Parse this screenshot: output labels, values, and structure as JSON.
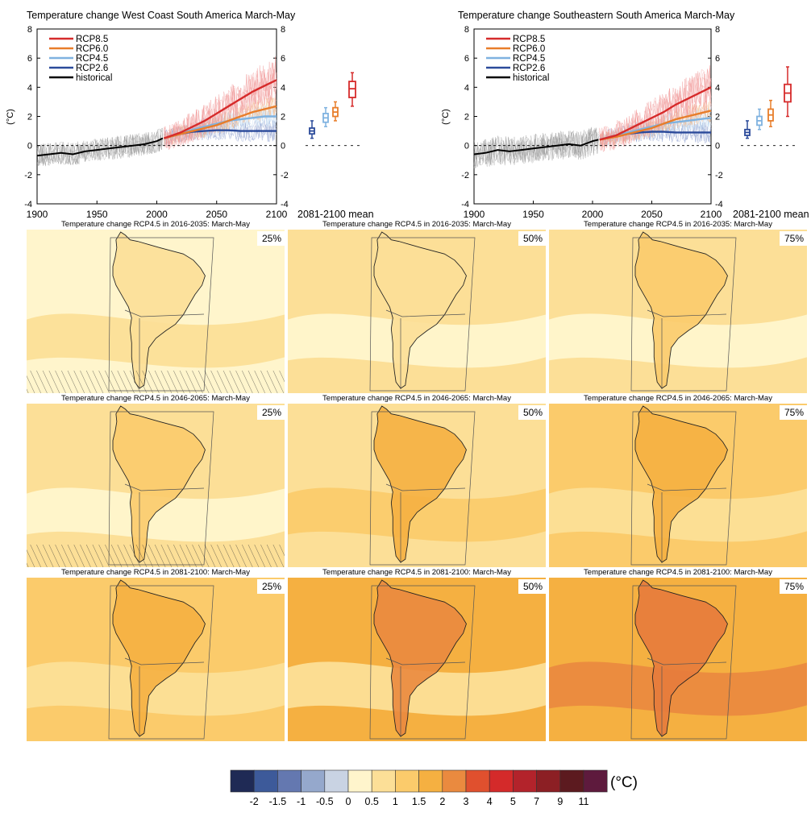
{
  "chart_data": {
    "type": "figure",
    "timeseries": [
      {
        "type": "line",
        "title": "Temperature change West Coast South America March-May",
        "ylabel": "(°C)",
        "xticks": [
          1900,
          1950,
          2000,
          2050,
          2100
        ],
        "yticks": [
          -4,
          -2,
          0,
          2,
          4,
          6,
          8
        ],
        "xlim": [
          1900,
          2100
        ],
        "ylim": [
          -4,
          8
        ],
        "box_label": "2081-2100 mean",
        "legend": [
          "RCP8.5",
          "RCP6.0",
          "RCP4.5",
          "RCP2.6",
          "historical"
        ],
        "colors": {
          "RCP8.5": "#d62b2b",
          "RCP6.0": "#e87d2a",
          "RCP4.5": "#7fb2e0",
          "RCP2.6": "#2b4a9a",
          "historical": "#000000"
        },
        "historical": {
          "x": [
            1900,
            1910,
            1920,
            1930,
            1940,
            1950,
            1960,
            1970,
            1980,
            1990,
            2000,
            2005
          ],
          "y": [
            -0.7,
            -0.6,
            -0.5,
            -0.6,
            -0.4,
            -0.3,
            -0.2,
            -0.1,
            0.0,
            0.1,
            0.3,
            0.5
          ]
        },
        "series": [
          {
            "name": "RCP8.5",
            "x": [
              2006,
              2020,
              2030,
              2040,
              2050,
              2060,
              2070,
              2080,
              2090,
              2100
            ],
            "y": [
              0.5,
              0.9,
              1.3,
              1.7,
              2.2,
              2.7,
              3.2,
              3.7,
              4.1,
              4.5
            ]
          },
          {
            "name": "RCP6.0",
            "x": [
              2006,
              2020,
              2030,
              2040,
              2050,
              2060,
              2070,
              2080,
              2090,
              2100
            ],
            "y": [
              0.5,
              0.8,
              1.0,
              1.2,
              1.4,
              1.7,
              2.0,
              2.3,
              2.5,
              2.7
            ]
          },
          {
            "name": "RCP4.5",
            "x": [
              2006,
              2020,
              2030,
              2040,
              2050,
              2060,
              2070,
              2080,
              2090,
              2100
            ],
            "y": [
              0.5,
              0.8,
              1.1,
              1.3,
              1.5,
              1.7,
              1.8,
              1.9,
              2.0,
              2.0
            ]
          },
          {
            "name": "RCP2.6",
            "x": [
              2006,
              2020,
              2030,
              2040,
              2050,
              2060,
              2070,
              2080,
              2090,
              2100
            ],
            "y": [
              0.5,
              0.8,
              0.95,
              1.0,
              1.05,
              1.05,
              1.0,
              1.0,
              1.0,
              1.0
            ]
          }
        ],
        "boxes": [
          {
            "name": "RCP2.6",
            "min": 0.5,
            "q1": 0.8,
            "median": 1.0,
            "q3": 1.2,
            "max": 1.7
          },
          {
            "name": "RCP4.5",
            "min": 1.3,
            "q1": 1.6,
            "median": 1.9,
            "q3": 2.2,
            "max": 2.6
          },
          {
            "name": "RCP6.0",
            "min": 1.7,
            "q1": 2.0,
            "median": 2.3,
            "q3": 2.6,
            "max": 3.0
          },
          {
            "name": "RCP8.5",
            "min": 2.7,
            "q1": 3.3,
            "median": 3.9,
            "q3": 4.4,
            "max": 5.0
          }
        ]
      },
      {
        "type": "line",
        "title": "Temperature change Southeastern South America March-May",
        "ylabel": "(°C)",
        "xticks": [
          1900,
          1950,
          2000,
          2050,
          2100
        ],
        "yticks": [
          -4,
          -2,
          0,
          2,
          4,
          6,
          8
        ],
        "xlim": [
          1900,
          2100
        ],
        "ylim": [
          -4,
          8
        ],
        "box_label": "2081-2100 mean",
        "legend": [
          "RCP8.5",
          "RCP6.0",
          "RCP4.5",
          "RCP2.6",
          "historical"
        ],
        "colors": {
          "RCP8.5": "#d62b2b",
          "RCP6.0": "#e87d2a",
          "RCP4.5": "#7fb2e0",
          "RCP2.6": "#2b4a9a",
          "historical": "#000000"
        },
        "historical": {
          "x": [
            1900,
            1910,
            1920,
            1930,
            1940,
            1950,
            1960,
            1970,
            1980,
            1990,
            2000,
            2005
          ],
          "y": [
            -0.6,
            -0.5,
            -0.3,
            -0.4,
            -0.3,
            -0.2,
            -0.1,
            0.0,
            0.1,
            0.0,
            0.3,
            0.4
          ]
        },
        "series": [
          {
            "name": "RCP8.5",
            "x": [
              2006,
              2020,
              2030,
              2040,
              2050,
              2060,
              2070,
              2080,
              2090,
              2100
            ],
            "y": [
              0.4,
              0.7,
              1.1,
              1.5,
              1.9,
              2.3,
              2.8,
              3.2,
              3.6,
              4.0
            ]
          },
          {
            "name": "RCP6.0",
            "x": [
              2006,
              2020,
              2030,
              2040,
              2050,
              2060,
              2070,
              2080,
              2090,
              2100
            ],
            "y": [
              0.4,
              0.6,
              0.8,
              1.0,
              1.2,
              1.5,
              1.8,
              2.0,
              2.2,
              2.4
            ]
          },
          {
            "name": "RCP4.5",
            "x": [
              2006,
              2020,
              2030,
              2040,
              2050,
              2060,
              2070,
              2080,
              2090,
              2100
            ],
            "y": [
              0.4,
              0.7,
              0.9,
              1.1,
              1.3,
              1.5,
              1.6,
              1.7,
              1.8,
              1.9
            ]
          },
          {
            "name": "RCP2.6",
            "x": [
              2006,
              2020,
              2030,
              2040,
              2050,
              2060,
              2070,
              2080,
              2090,
              2100
            ],
            "y": [
              0.4,
              0.7,
              0.8,
              0.9,
              0.95,
              0.95,
              0.9,
              0.9,
              0.9,
              0.9
            ]
          }
        ],
        "boxes": [
          {
            "name": "RCP2.6",
            "min": 0.5,
            "q1": 0.7,
            "median": 0.9,
            "q3": 1.1,
            "max": 1.7
          },
          {
            "name": "RCP4.5",
            "min": 1.1,
            "q1": 1.4,
            "median": 1.7,
            "q3": 2.0,
            "max": 2.5
          },
          {
            "name": "RCP6.0",
            "min": 1.3,
            "q1": 1.7,
            "median": 2.1,
            "q3": 2.5,
            "max": 3.1
          },
          {
            "name": "RCP8.5",
            "min": 2.0,
            "q1": 3.0,
            "median": 3.6,
            "q3": 4.2,
            "max": 5.4
          }
        ]
      }
    ],
    "maps": [
      {
        "title": "Temperature change RCP4.5 in 2016-2035: March-May",
        "percentile": "25%",
        "background": "#fff5cc",
        "mid": "#fcdf97",
        "high": "#fcdf97",
        "hatch": true
      },
      {
        "title": "Temperature change RCP4.5 in 2016-2035: March-May",
        "percentile": "50%",
        "background": "#fcdf97",
        "mid": "#fff5cc",
        "high": "#fcdf97",
        "hatch": false
      },
      {
        "title": "Temperature change RCP4.5 in 2016-2035: March-May",
        "percentile": "75%",
        "background": "#fcdf97",
        "mid": "#fff5cc",
        "high": "#fbcb6b",
        "hatch": false
      },
      {
        "title": "Temperature change RCP4.5 in 2046-2065: March-May",
        "percentile": "25%",
        "background": "#fcdf97",
        "mid": "#fff5cc",
        "high": "#fbcb6b",
        "hatch": true
      },
      {
        "title": "Temperature change RCP4.5 in 2046-2065: March-May",
        "percentile": "50%",
        "background": "#fcdf97",
        "mid": "#fbcb6b",
        "high": "#f5b041",
        "hatch": false
      },
      {
        "title": "Temperature change RCP4.5 in 2046-2065: March-May",
        "percentile": "75%",
        "background": "#fbcb6b",
        "mid": "#fcdf97",
        "high": "#f5b041",
        "hatch": false
      },
      {
        "title": "Temperature change RCP4.5 in 2081-2100: March-May",
        "percentile": "25%",
        "background": "#fbcb6b",
        "mid": "#fcdf97",
        "high": "#f5b041",
        "hatch": false
      },
      {
        "title": "Temperature change RCP4.5 in 2081-2100: March-May",
        "percentile": "50%",
        "background": "#f5b041",
        "mid": "#fcdf97",
        "high": "#ea8a3f",
        "hatch": false
      },
      {
        "title": "Temperature change RCP4.5 in 2081-2100: March-May",
        "percentile": "75%",
        "background": "#f5b041",
        "mid": "#ea8a3f",
        "high": "#e77b3c",
        "hatch": false
      }
    ],
    "colorbar": {
      "unit": "(°C)",
      "labels": [
        "-2",
        "-1.5",
        "-1",
        "-0.5",
        "0",
        "0.5",
        "1",
        "1.5",
        "2",
        "3",
        "4",
        "5",
        "7",
        "9",
        "11"
      ],
      "colors": [
        "#1f2a55",
        "#3d5a9a",
        "#6478b0",
        "#95a8cc",
        "#c9d3e3",
        "#fff5cc",
        "#fcdf97",
        "#fbcb6b",
        "#f5b041",
        "#ea8a3f",
        "#e0502e",
        "#d42a2a",
        "#b3232b",
        "#8c1f24",
        "#5c1a1f",
        "#5e1a3d"
      ]
    }
  }
}
